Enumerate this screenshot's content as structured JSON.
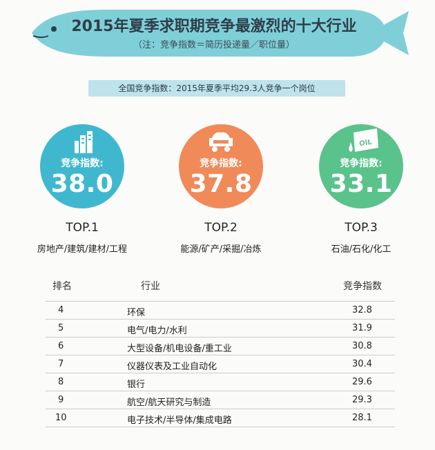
{
  "header": {
    "title": "2015年夏季求职期竞争最激烈的十大行业",
    "subtitle": "（注：竞争指数＝简历投递量／职位量）"
  },
  "national_note": "全国竞争指数：2015年夏季平均29.3人竞争一个岗位",
  "colors": {
    "banner": "#7fcfd8",
    "top1": "#3fb8cf",
    "top2": "#f08a59",
    "top3": "#5ac28b",
    "label_bar": "#bfe3ea"
  },
  "top3": [
    {
      "icon": "building-icon",
      "label": "竞争指数:",
      "value": "38.0",
      "rank": "TOP.1",
      "industry": "房地产/建筑/建材/工程"
    },
    {
      "icon": "mine-cart-icon",
      "label": "竞争指数:",
      "value": "37.8",
      "rank": "TOP.2",
      "industry": "能源/矿产/采掘/冶炼"
    },
    {
      "icon": "oil-can-icon",
      "label": "竞争指数:",
      "value": "33.1",
      "rank": "TOP.3",
      "industry": "石油/石化/化工",
      "icon_text": "OIL"
    }
  ],
  "table": {
    "headers": [
      "排名",
      "行业",
      "竞争指数"
    ],
    "rows": [
      [
        "4",
        "环保",
        "32.8"
      ],
      [
        "5",
        "电气/电力/水利",
        "31.9"
      ],
      [
        "6",
        "大型设备/机电设备/重工业",
        "30.8"
      ],
      [
        "7",
        "仪器仪表及工业自动化",
        "30.4"
      ],
      [
        "8",
        "银行",
        "29.6"
      ],
      [
        "9",
        "航空/航天研究与制造",
        "29.3"
      ],
      [
        "10",
        "电子技术/半导体/集成电路",
        "28.1"
      ]
    ]
  },
  "chart_data": {
    "type": "table",
    "title": "2015年夏季求职期竞争最激烈的十大行业",
    "subtitle": "（注：竞争指数＝简历投递量／职位量）",
    "columns": [
      "排名",
      "行业",
      "竞争指数"
    ],
    "rows": [
      [
        1,
        "房地产/建筑/建材/工程",
        38.0
      ],
      [
        2,
        "能源/矿产/采掘/冶炼",
        37.8
      ],
      [
        3,
        "石油/石化/化工",
        33.1
      ],
      [
        4,
        "环保",
        32.8
      ],
      [
        5,
        "电气/电力/水利",
        31.9
      ],
      [
        6,
        "大型设备/机电设备/重工业",
        30.8
      ],
      [
        7,
        "仪器仪表及工业自动化",
        30.4
      ],
      [
        8,
        "银行",
        29.6
      ],
      [
        9,
        "航空/航天研究与制造",
        29.3
      ],
      [
        10,
        "电子技术/半导体/集成电路",
        28.1
      ]
    ]
  }
}
